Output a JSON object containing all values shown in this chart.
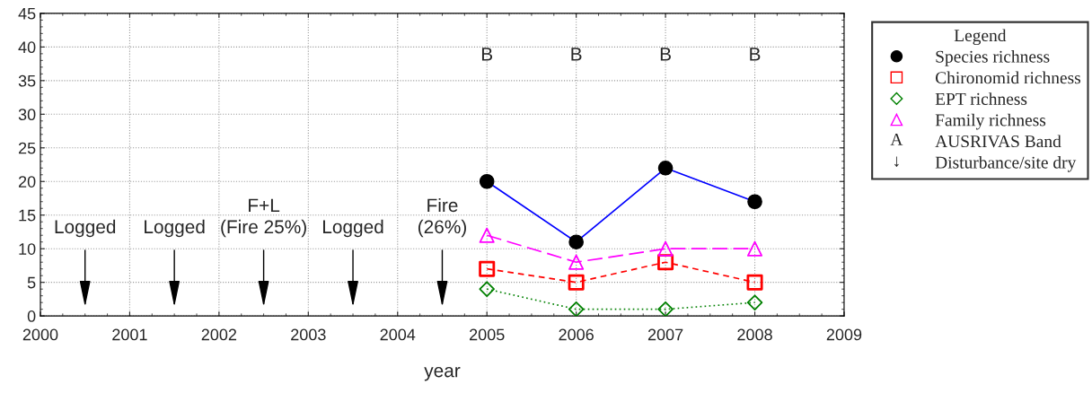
{
  "chart_data": {
    "type": "line",
    "xlabel": "year",
    "legend_title": "Legend",
    "x": [
      2005,
      2006,
      2007,
      2008
    ],
    "series": [
      {
        "name": "Species richness",
        "color": "#0000ff",
        "colors": [
          "#000000",
          "#000000",
          "#000000",
          "#000000"
        ],
        "values": [
          20,
          11,
          22,
          17
        ],
        "marker": "circle",
        "line_style": "solid"
      },
      {
        "name": "Chironomid richness",
        "color": "#ff0000",
        "values": [
          7,
          5,
          8,
          5
        ],
        "marker": "square",
        "line_style": "dashed"
      },
      {
        "name": "EPT richness",
        "color": "#008000",
        "values": [
          4,
          1,
          1,
          2
        ],
        "marker": "diamond",
        "line_style": "dotted"
      },
      {
        "name": "Family richness",
        "color": "#ff00ff",
        "values": [
          12,
          8,
          10,
          10
        ],
        "marker": "triangle",
        "line_style": "longdash"
      }
    ],
    "xlim": [
      2000,
      2009
    ],
    "xticks": [
      2000,
      2001,
      2002,
      2003,
      2004,
      2005,
      2006,
      2007,
      2008,
      2009
    ],
    "ylim": [
      0,
      45
    ],
    "yticks": [
      0,
      5,
      10,
      15,
      20,
      25,
      30,
      35,
      40,
      45
    ],
    "grid": true,
    "legend": "right",
    "annotations": [
      "B",
      "B",
      "B",
      "B",
      "Logged",
      "Logged",
      "F+L\n(Fire 25%)",
      "Logged",
      "Fire\n(26%)",
      "A",
      "AUSRIVAS Band",
      "↓",
      "Disturbance/site dry"
    ]
  }
}
